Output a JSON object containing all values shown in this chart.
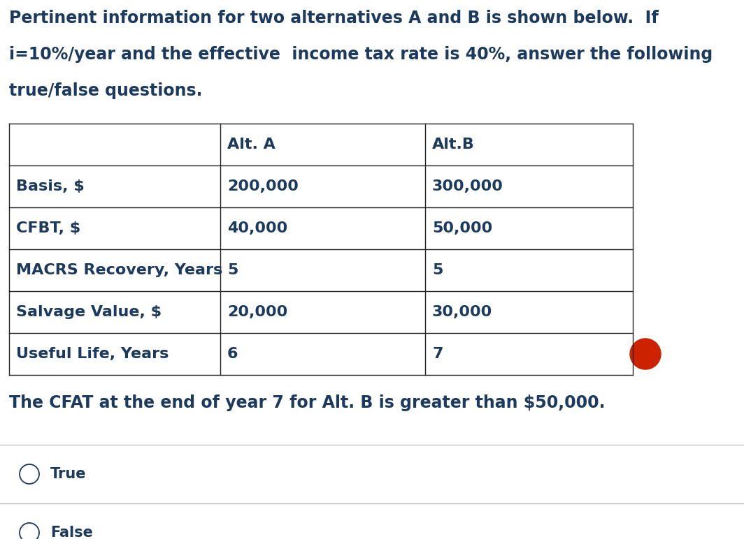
{
  "header_text": "Pertinent information for two alternatives A and B is shown below.  If\ni=10%/year and the effective  income tax rate is 40%, answer the following\ntrue/false questions.",
  "table_headers": [
    "",
    "Alt. A",
    "Alt.B"
  ],
  "table_rows": [
    [
      "Basis, $",
      "200,000",
      "300,000"
    ],
    [
      "CFBT, $",
      "40,000",
      "50,000"
    ],
    [
      "MACRS Recovery, Years",
      "5",
      "5"
    ],
    [
      "Salvage Value, $",
      "20,000",
      "30,000"
    ],
    [
      "Useful Life, Years",
      "6",
      "7"
    ]
  ],
  "question_text": "The CFAT at the end of year 7 for Alt. B is greater than $50,000.",
  "option1": "True",
  "option2": "False",
  "bg_color": "#ffffff",
  "text_color": "#1c3a5e",
  "table_line_color": "#222222",
  "header_fontsize": 17,
  "table_fontsize": 16,
  "question_fontsize": 17,
  "option_fontsize": 15,
  "red_dot_color": "#cc2200"
}
